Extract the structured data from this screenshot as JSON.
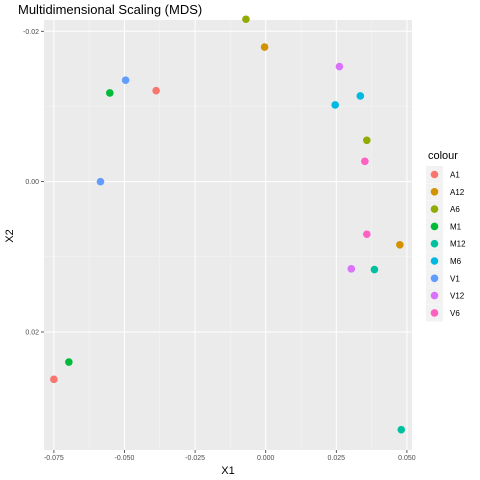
{
  "chart_data": {
    "type": "scatter",
    "title": "Multidimensional Scaling (MDS)",
    "xlabel": "X1",
    "ylabel": "X2",
    "xlim": [
      -0.0785,
      0.0518
    ],
    "ylim": [
      -0.0215,
      0.0357
    ],
    "y_reversed": true,
    "x_ticks": [
      -0.075,
      -0.05,
      -0.025,
      0.0,
      0.025,
      0.05
    ],
    "x_tick_labels": [
      "-0.075",
      "-0.050",
      "-0.025",
      "0.000",
      "0.025",
      "0.050"
    ],
    "y_ticks": [
      -0.02,
      0.0,
      0.02
    ],
    "y_tick_labels": [
      "-0.02",
      "0.00",
      "0.02"
    ],
    "grid": true,
    "legend_title": "colour",
    "legend_position": "right",
    "series": [
      {
        "name": "A1",
        "color": "#F8766D",
        "points": [
          {
            "x": -0.0388,
            "y": -0.0121
          },
          {
            "x": -0.075,
            "y": 0.0263
          }
        ]
      },
      {
        "name": "A12",
        "color": "#D39200",
        "points": [
          {
            "x": -0.0004,
            "y": -0.0179
          },
          {
            "x": 0.0475,
            "y": 0.0084
          }
        ]
      },
      {
        "name": "A6",
        "color": "#93AA00",
        "points": [
          {
            "x": -0.007,
            "y": -0.0216
          },
          {
            "x": 0.0358,
            "y": -0.0055
          }
        ]
      },
      {
        "name": "M1",
        "color": "#00BA38",
        "points": [
          {
            "x": -0.0552,
            "y": -0.0118
          },
          {
            "x": -0.0697,
            "y": 0.024
          }
        ]
      },
      {
        "name": "M12",
        "color": "#00C19F",
        "points": [
          {
            "x": 0.0385,
            "y": 0.0117
          },
          {
            "x": 0.048,
            "y": 0.033
          }
        ]
      },
      {
        "name": "M6",
        "color": "#00B9E3",
        "points": [
          {
            "x": 0.0335,
            "y": -0.0114
          },
          {
            "x": 0.0246,
            "y": -0.0102
          }
        ]
      },
      {
        "name": "V1",
        "color": "#619CFF",
        "points": [
          {
            "x": -0.0496,
            "y": -0.0135
          },
          {
            "x": -0.0585,
            "y": 0.0
          }
        ]
      },
      {
        "name": "V12",
        "color": "#DB72FB",
        "points": [
          {
            "x": 0.0261,
            "y": -0.0153
          },
          {
            "x": 0.0303,
            "y": 0.0116
          }
        ]
      },
      {
        "name": "V6",
        "color": "#FF61C3",
        "points": [
          {
            "x": 0.0351,
            "y": -0.0027
          },
          {
            "x": 0.0358,
            "y": 0.007
          }
        ]
      }
    ],
    "colors": {
      "panel_bg": "#EBEBEB",
      "grid_major": "#FFFFFF",
      "grid_minor": "#F5F5F5",
      "legend_key_bg": "#F2F2F2",
      "tick_color": "#333333"
    }
  }
}
